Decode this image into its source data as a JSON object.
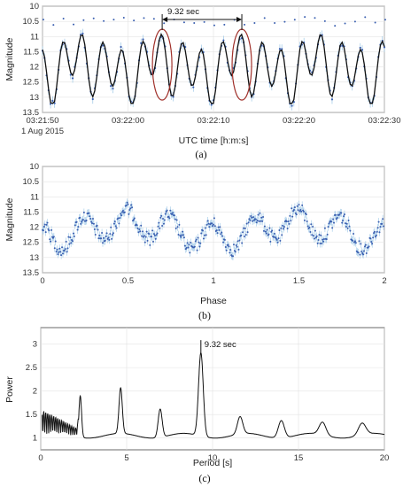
{
  "chart_data": [
    {
      "type": "scatter",
      "caption": "(a)",
      "xlabel": "UTC time [h:m:s]",
      "ylabel": "Magnitude",
      "date_label": "1 Aug 2015",
      "x_ticks": [
        "03:21:50",
        "03:22:00",
        "03:22:10",
        "03:22:20",
        "03:22:30"
      ],
      "x_range_seconds": [
        0,
        40
      ],
      "y_ticks": [
        "10",
        "10.5",
        "11",
        "11.5",
        "12",
        "12.5",
        "13",
        "13.5"
      ],
      "ylim": [
        13.5,
        10
      ],
      "y_inverted": true,
      "annotation": "9.32 sec",
      "annotation_span_seconds": [
        14.0,
        23.32
      ],
      "highlight_ellipses_seconds": [
        14.0,
        23.32
      ],
      "period_seconds": 9.32,
      "series": [
        {
          "kind": "points_with_errorbars",
          "color": "#3a5fb0"
        },
        {
          "kind": "model_curve",
          "color": "#111111"
        }
      ],
      "highlight_color": "#a0302a"
    },
    {
      "type": "scatter",
      "caption": "(b)",
      "xlabel": "Phase",
      "ylabel": "Magnitude",
      "x_ticks": [
        "0",
        "0.5",
        "1",
        "1.5",
        "2"
      ],
      "xlim": [
        0,
        2
      ],
      "y_ticks": [
        "10",
        "10.5",
        "11",
        "11.5",
        "12",
        "12.5",
        "13",
        "13.5"
      ],
      "ylim": [
        13.5,
        10
      ],
      "y_inverted": true,
      "series": [
        {
          "kind": "phased_points_with_errorbars",
          "color": "#3a5fb0"
        }
      ]
    },
    {
      "type": "line",
      "caption": "(c)",
      "xlabel": "Period [s]",
      "ylabel": "Power",
      "x_ticks": [
        "0",
        "5",
        "10",
        "15",
        "20"
      ],
      "xlim": [
        0,
        20
      ],
      "y_ticks": [
        "1",
        "1.5",
        "2",
        "2.5",
        "3"
      ],
      "ylim": [
        0.75,
        3.35
      ],
      "annotation": "9.32 sec",
      "peaks": [
        {
          "period": 2.3,
          "power": 1.93
        },
        {
          "period": 4.65,
          "power": 2.02
        },
        {
          "period": 6.95,
          "power": 1.65
        },
        {
          "period": 9.32,
          "power": 2.82
        },
        {
          "period": 11.6,
          "power": 1.42
        },
        {
          "period": 14.0,
          "power": 1.42
        },
        {
          "period": 16.4,
          "power": 1.32
        },
        {
          "period": 18.7,
          "power": 1.3
        }
      ],
      "series": [
        {
          "kind": "periodogram",
          "color": "#111111"
        }
      ]
    }
  ]
}
